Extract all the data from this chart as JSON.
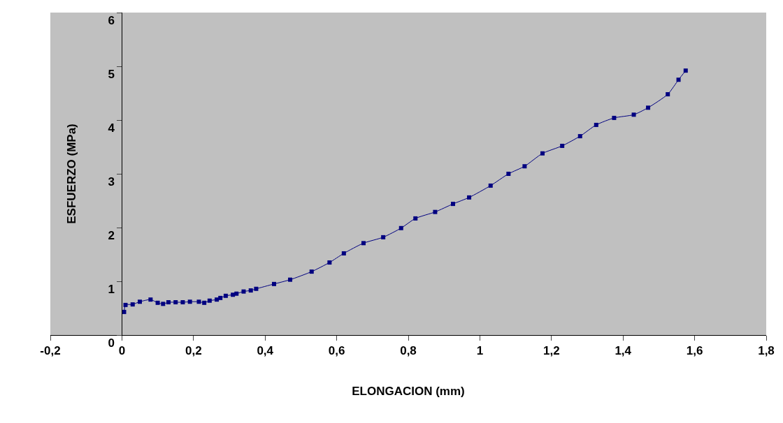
{
  "chart_data": {
    "type": "line",
    "xlabel": "ELONGACION (mm)",
    "ylabel": "ESFUERZO (MPa)",
    "xlim": [
      -0.2,
      1.8
    ],
    "xticks": [
      {
        "value": -0.2,
        "label": "-0,2"
      },
      0,
      {
        "value": 0.2,
        "label": "0,2"
      },
      {
        "value": 0.4,
        "label": "0,4"
      },
      {
        "value": 0.6,
        "label": "0,6"
      },
      {
        "value": 0.8,
        "label": "0,8"
      },
      1,
      {
        "value": 1.2,
        "label": "1,2"
      },
      {
        "value": 1.4,
        "label": "1,4"
      },
      {
        "value": 1.6,
        "label": "1,6"
      },
      {
        "value": 1.8,
        "label": "1,8"
      }
    ],
    "ylim": [
      0,
      6
    ],
    "yticks": [
      0,
      1,
      2,
      3,
      4,
      5,
      6
    ],
    "grid": false,
    "marker": "square",
    "line_style": "solid",
    "series": [
      {
        "color": "#000080",
        "x": [
          0.006,
          0.01,
          0.03,
          0.05,
          0.08,
          0.1,
          0.115,
          0.13,
          0.15,
          0.17,
          0.19,
          0.215,
          0.23,
          0.245,
          0.265,
          0.275,
          0.29,
          0.31,
          0.32,
          0.34,
          0.36,
          0.375,
          0.425,
          0.47,
          0.53,
          0.58,
          0.62,
          0.675,
          0.73,
          0.78,
          0.82,
          0.875,
          0.925,
          0.97,
          1.03,
          1.08,
          1.125,
          1.175,
          1.23,
          1.28,
          1.325,
          1.375,
          1.43,
          1.47,
          1.525,
          1.555,
          1.575
        ],
        "values": [
          0.43,
          0.56,
          0.57,
          0.62,
          0.66,
          0.6,
          0.58,
          0.61,
          0.61,
          0.61,
          0.62,
          0.62,
          0.6,
          0.64,
          0.66,
          0.69,
          0.73,
          0.75,
          0.77,
          0.81,
          0.83,
          0.86,
          0.95,
          1.03,
          1.18,
          1.35,
          1.52,
          1.71,
          1.82,
          1.99,
          2.17,
          2.29,
          2.44,
          2.56,
          2.78,
          3.0,
          3.14,
          3.38,
          3.52,
          3.7,
          3.91,
          4.04,
          4.1,
          4.23,
          4.48,
          4.75,
          4.92
        ]
      }
    ]
  }
}
